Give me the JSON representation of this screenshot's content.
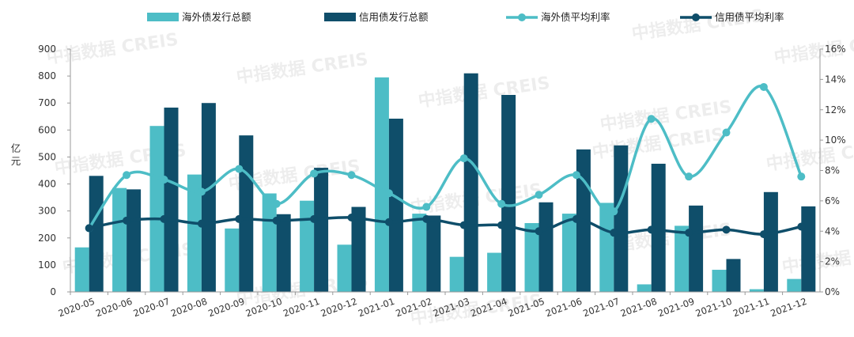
{
  "chart_data": {
    "type": "bar",
    "categories": [
      "2020-05",
      "2020-06",
      "2020-07",
      "2020-08",
      "2020-09",
      "2020-10",
      "2020-11",
      "2020-12",
      "2021-01",
      "2021-02",
      "2021-03",
      "2021-04",
      "2021-05",
      "2021-06",
      "2021-07",
      "2021-08",
      "2021-09",
      "2021-10",
      "2021-11",
      "2021-12"
    ],
    "series": [
      {
        "name": "海外债发行总额",
        "kind": "bar",
        "axis": "left",
        "color": "#4dbdc6",
        "values": [
          165,
          385,
          615,
          435,
          235,
          365,
          338,
          175,
          795,
          290,
          130,
          145,
          255,
          290,
          330,
          28,
          245,
          82,
          10,
          48
        ]
      },
      {
        "name": "信用债发行总额",
        "kind": "bar",
        "axis": "left",
        "color": "#0f4e6a",
        "values": [
          430,
          380,
          683,
          700,
          580,
          288,
          460,
          315,
          642,
          283,
          810,
          730,
          332,
          528,
          543,
          475,
          320,
          122,
          370,
          317
        ]
      },
      {
        "name": "海外债平均利率",
        "kind": "line",
        "axis": "right",
        "color": "#4dbdc6",
        "unit": "%",
        "values": [
          4.2,
          7.7,
          7.4,
          6.6,
          8.1,
          5.8,
          7.8,
          7.7,
          6.5,
          5.6,
          8.8,
          5.8,
          6.4,
          7.7,
          5.3,
          11.4,
          7.6,
          10.5,
          13.5,
          7.6
        ]
      },
      {
        "name": "信用债平均利率",
        "kind": "line",
        "axis": "right",
        "color": "#0f4e6a",
        "unit": "%",
        "values": [
          4.2,
          4.7,
          4.8,
          4.5,
          4.8,
          4.7,
          4.8,
          4.9,
          4.6,
          4.8,
          4.4,
          4.4,
          4.0,
          4.8,
          3.9,
          4.1,
          3.9,
          4.1,
          3.8,
          4.3
        ]
      }
    ],
    "ylabel": "亿元",
    "ylim": [
      0,
      900
    ],
    "yticks": [
      "0",
      "100",
      "200",
      "300",
      "400",
      "500",
      "600",
      "700",
      "800",
      "900"
    ],
    "y2lim": [
      0,
      16
    ],
    "y2ticks": [
      "0%",
      "2%",
      "4%",
      "6%",
      "8%",
      "10%",
      "12%",
      "14%",
      "16%"
    ],
    "grid": false,
    "legend_position": "top",
    "watermark": "中指数据 CREIS"
  }
}
